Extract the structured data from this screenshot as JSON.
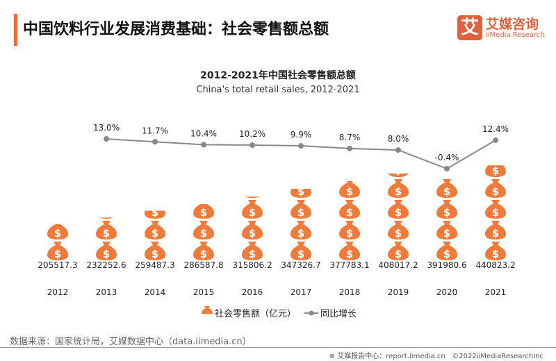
{
  "header": {
    "title": "中国饮料行业发展消费基础：社会零售额总额",
    "logo_cn": "艾媒咨询",
    "logo_en": "iiMedia Research",
    "logo_glyph": "艾"
  },
  "chart_data": {
    "type": "bar+line",
    "title": "2012-2021年中国社会零售额总额",
    "subtitle": "China's total retail sales, 2012-2021",
    "categories": [
      "2012",
      "2013",
      "2014",
      "2015",
      "2016",
      "2017",
      "2018",
      "2019",
      "2020",
      "2021"
    ],
    "series": [
      {
        "name": "社会零售额（亿元）",
        "type": "pictogram-bar",
        "values": [
          205517.3,
          232252.6,
          259487.3,
          286587.8,
          315806.2,
          347326.7,
          377783.1,
          408017.2,
          391980.6,
          440823.2
        ],
        "labels": [
          "205517.3",
          "232252.6",
          "259487.3",
          "286587.8",
          "315806.2",
          "347326.7",
          "377783.1",
          "408017.2",
          "391980.6",
          "440823.2"
        ],
        "color": "#f07a3a"
      },
      {
        "name": "同比增长",
        "type": "line",
        "values": [
          null,
          13.0,
          11.7,
          10.4,
          10.2,
          9.9,
          8.7,
          8.0,
          -0.4,
          12.4
        ],
        "labels": [
          "",
          "13.0%",
          "11.7%",
          "10.4%",
          "10.2%",
          "9.9%",
          "8.7%",
          "8.0%",
          "-0.4%",
          "12.4%"
        ],
        "color": "#888888"
      }
    ],
    "legend_position": "bottom",
    "grid": false
  },
  "footer": {
    "source": "数据来源：国家统计局，艾媒数据中心（data.iimedia.cn）",
    "report": "艾媒报告中心：report.iimedia.cn",
    "copyright": "©2022iiMediaResearchInc"
  }
}
